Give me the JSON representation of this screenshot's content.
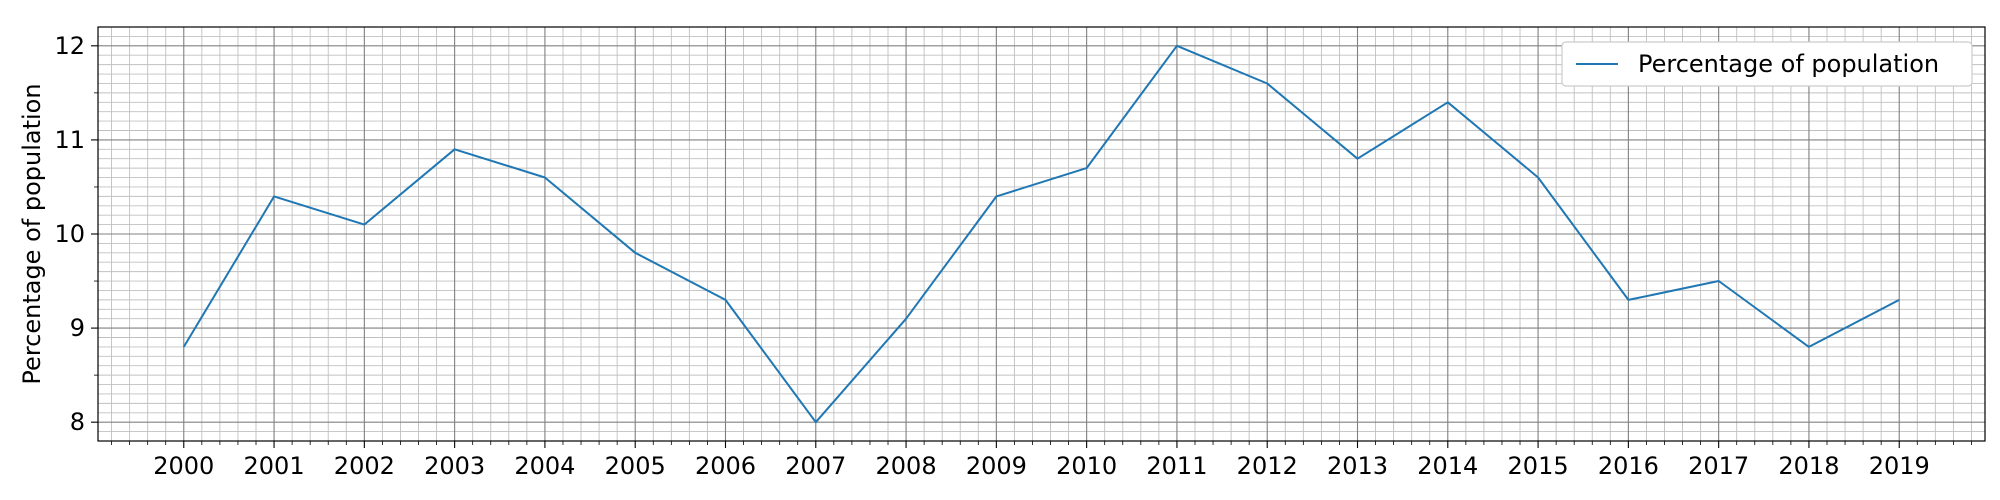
{
  "chart_data": {
    "type": "line",
    "title": "",
    "xlabel": "",
    "ylabel": "Percentage of population",
    "x": [
      2000,
      2001,
      2002,
      2003,
      2004,
      2005,
      2006,
      2007,
      2008,
      2009,
      2010,
      2011,
      2012,
      2013,
      2014,
      2015,
      2016,
      2017,
      2018,
      2019
    ],
    "xtick_labels": [
      "2000",
      "2001",
      "2002",
      "2003",
      "2004",
      "2005",
      "2006",
      "2007",
      "2008",
      "2009",
      "2010",
      "2011",
      "2012",
      "2013",
      "2014",
      "2015",
      "2016",
      "2017",
      "2018",
      "2019"
    ],
    "series": [
      {
        "name": "Percentage of population",
        "color": "#1f77b4",
        "values": [
          8.8,
          10.4,
          10.1,
          10.9,
          10.6,
          9.8,
          9.3,
          8.0,
          9.1,
          10.4,
          10.7,
          12.0,
          11.6,
          10.8,
          11.4,
          10.6,
          9.3,
          9.5,
          8.8,
          9.3
        ]
      }
    ],
    "yticks": [
      8,
      9,
      10,
      11,
      12
    ],
    "ytick_labels": [
      "8",
      "9",
      "10",
      "11",
      "12"
    ],
    "xlim": [
      1999.05,
      2019.95
    ],
    "ylim": [
      7.8,
      12.2
    ],
    "grid": true,
    "minor_grid": true,
    "legend": {
      "position": "top-right",
      "entries": [
        "Percentage of population"
      ]
    }
  }
}
